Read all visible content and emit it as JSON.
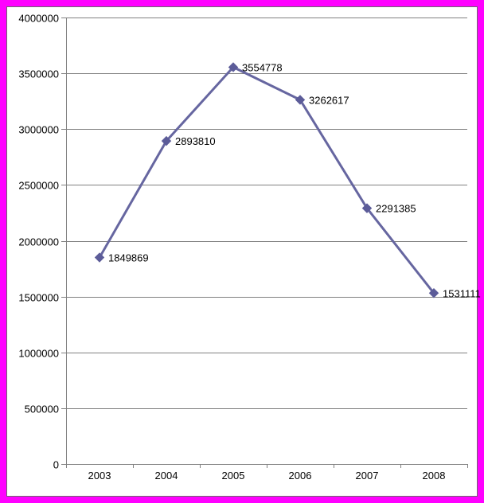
{
  "chart_data": {
    "type": "line",
    "title": "",
    "categories": [
      "2003",
      "2004",
      "2005",
      "2006",
      "2007",
      "2008"
    ],
    "series": [
      {
        "name": "",
        "values": [
          1849869,
          2893810,
          3554778,
          3262617,
          2291385,
          1531111
        ],
        "data_labels": [
          "1849869",
          "2893810",
          "3554778",
          "3262617",
          "2291385",
          "1531111"
        ]
      }
    ],
    "ylim": [
      0,
      4000000
    ],
    "ytick_step": 500000,
    "ytick_labels": [
      "0",
      "500000",
      "1000000",
      "1500000",
      "2000000",
      "2500000",
      "3000000",
      "3500000",
      "4000000"
    ],
    "grid": true,
    "legend": false,
    "marker_shape": "diamond",
    "colors": {
      "frame_border": "#FF00FF",
      "inner_border": "#6b6b6b",
      "plot_background": "#ffffff",
      "gridline": "#808080",
      "axis": "#808080",
      "series_line": "#6666A0",
      "series_marker": "#5C5C99",
      "label_text": "#000000"
    }
  }
}
